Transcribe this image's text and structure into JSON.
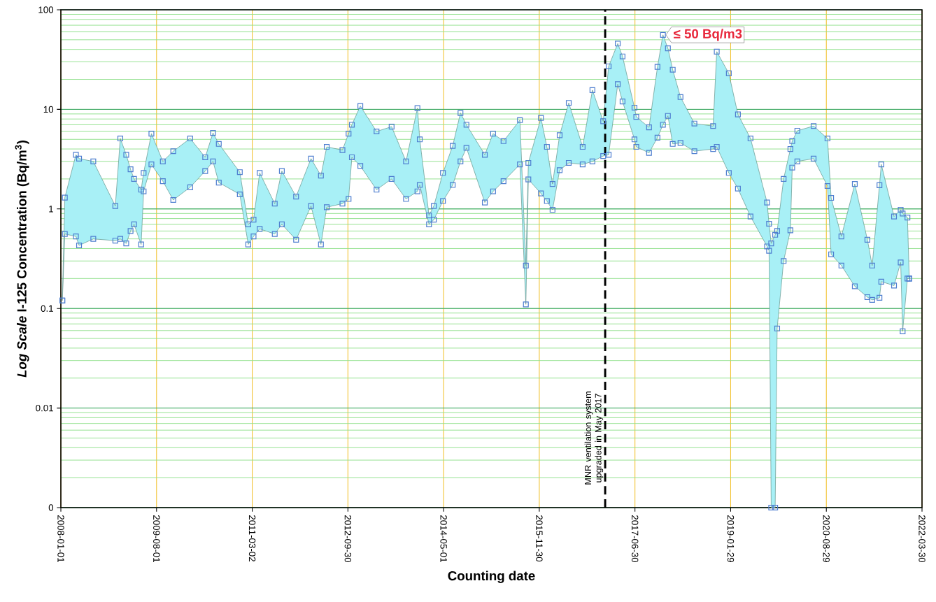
{
  "chart_data": {
    "type": "scatter",
    "xlabel": "Counting date",
    "ylabel": "*Log Scale* I-125 Concentration (Bq/m$^{3}$)",
    "x": [
      "2008-01-10",
      "2008-01-25",
      "2008-04-01",
      "2008-04-20",
      "2008-07-15",
      "2008-11-25",
      "2008-12-25",
      "2009-01-30",
      "2009-02-25",
      "2009-03-18",
      "2009-04-30",
      "2009-05-15",
      "2009-07-01",
      "2009-09-08",
      "2009-11-10",
      "2010-02-20",
      "2010-05-22",
      "2010-07-08",
      "2010-08-12",
      "2010-12-17",
      "2011-02-06",
      "2011-03-10",
      "2011-04-16",
      "2011-07-16",
      "2011-08-28",
      "2011-11-22",
      "2012-02-20",
      "2012-04-20",
      "2012-05-25",
      "2012-08-28",
      "2012-10-04",
      "2012-10-24",
      "2012-12-14",
      "2013-03-22",
      "2013-06-21",
      "2013-09-16",
      "2013-11-24",
      "2013-12-08",
      "2014-02-02",
      "2014-03-03",
      "2014-04-27",
      "2014-06-25",
      "2014-08-11",
      "2014-09-16",
      "2015-01-05",
      "2015-02-24",
      "2015-04-28",
      "2015-08-05",
      "2015-09-10",
      "2015-09-25",
      "2015-12-10",
      "2016-01-15",
      "2016-02-18",
      "2016-04-01",
      "2016-05-26",
      "2016-08-18",
      "2016-10-16",
      "2016-12-20",
      "2017-01-22",
      "2017-03-18",
      "2017-04-16",
      "2017-06-27",
      "2017-07-08",
      "2017-09-23",
      "2017-11-13",
      "2017-12-16",
      "2018-01-15",
      "2018-02-13",
      "2018-04-01",
      "2018-06-24",
      "2018-10-15",
      "2018-11-06",
      "2019-01-18",
      "2019-03-14",
      "2019-05-29",
      "2019-09-06",
      "2019-09-18",
      "2019-10-01",
      "2019-10-25",
      "2019-11-06",
      "2019-12-15",
      "2020-01-25",
      "2020-02-05",
      "2020-03-07",
      "2020-06-13",
      "2020-09-05",
      "2020-09-27",
      "2020-11-28",
      "2021-02-17",
      "2021-05-04",
      "2021-06-02",
      "2021-07-16",
      "2021-07-27",
      "2021-10-12",
      "2021-11-21",
      "2021-12-03",
      "2022-01-01",
      "2022-01-12"
    ],
    "series": [
      {
        "color": "#4f7fd0",
        "values": [
          0.12,
          1.3,
          3.5,
          3.2,
          3.0,
          1.07,
          5.1,
          3.5,
          2.5,
          2.0,
          1.56,
          2.3,
          5.7,
          3.0,
          3.8,
          5.1,
          3.3,
          5.8,
          4.5,
          2.34,
          0.7,
          0.78,
          2.3,
          1.13,
          2.4,
          1.33,
          3.2,
          2.16,
          4.2,
          3.9,
          5.7,
          7.0,
          10.8,
          6.0,
          6.7,
          3.0,
          10.3,
          5.0,
          0.86,
          1.07,
          2.3,
          4.3,
          9.2,
          7.0,
          3.5,
          5.7,
          4.8,
          7.8,
          0.27,
          2.9,
          8.2,
          4.2,
          1.78,
          5.5,
          11.6,
          4.2,
          15.6,
          7.6,
          27,
          45.8,
          34,
          10.4,
          8.4,
          6.6,
          26.7,
          56,
          41,
          25,
          13.3,
          7.2,
          6.8,
          38,
          23,
          8.9,
          5.1,
          1.16,
          0.71,
          0.45,
          0.55,
          0.6,
          2.0,
          4.0,
          4.8,
          6.1,
          6.8,
          5.1,
          1.29,
          0.53,
          1.78,
          0.49,
          0.27,
          1.73,
          2.8,
          0.84,
          0.98,
          0.9,
          0.82,
          0.2
        ],
        "upper": [
          0.12,
          1.3,
          3.5,
          3.2,
          3.0,
          1.07,
          5.1,
          3.5,
          2.5,
          2.0,
          1.56,
          2.3,
          5.7,
          3.0,
          3.8,
          5.1,
          3.3,
          5.8,
          4.5,
          2.34,
          0.7,
          0.78,
          2.3,
          1.13,
          2.4,
          1.33,
          3.2,
          2.16,
          4.2,
          3.9,
          5.7,
          7.0,
          10.8,
          6.0,
          6.7,
          3.0,
          10.3,
          5.0,
          0.86,
          1.07,
          2.3,
          4.3,
          9.2,
          7.0,
          3.5,
          5.7,
          4.8,
          7.8,
          0.27,
          2.9,
          8.2,
          4.2,
          1.78,
          5.5,
          11.6,
          4.2,
          15.6,
          7.6,
          27,
          45.8,
          34,
          10.4,
          8.4,
          6.6,
          26.7,
          56,
          41,
          25,
          13.3,
          7.2,
          6.8,
          38,
          23,
          8.9,
          5.1,
          1.16,
          0.71,
          0.45,
          0.55,
          0.6,
          2.0,
          4.0,
          4.8,
          6.1,
          6.8,
          5.1,
          1.29,
          0.53,
          1.78,
          0.49,
          0.27,
          1.73,
          2.8,
          0.84,
          0.98,
          0.9,
          0.82,
          0.2
        ],
        "lower": [
          0.12,
          0.56,
          0.53,
          0.43,
          0.5,
          0.48,
          0.5,
          0.45,
          0.6,
          0.7,
          0.44,
          1.5,
          2.8,
          1.9,
          1.23,
          1.65,
          2.4,
          3.0,
          1.84,
          1.4,
          0.44,
          0.53,
          0.63,
          0.56,
          0.7,
          0.49,
          1.07,
          0.44,
          1.04,
          1.13,
          1.26,
          3.3,
          2.7,
          1.56,
          2.0,
          1.26,
          1.5,
          1.74,
          0.7,
          0.78,
          1.2,
          1.74,
          3.0,
          4.1,
          1.16,
          1.5,
          1.9,
          2.8,
          0.11,
          1.98,
          1.43,
          1.2,
          0.98,
          2.45,
          2.9,
          2.8,
          3.0,
          3.4,
          3.5,
          17.9,
          12,
          5.0,
          4.2,
          3.66,
          5.2,
          7.0,
          8.6,
          4.5,
          4.6,
          3.8,
          4.0,
          4.2,
          2.3,
          1.6,
          0.84,
          0.42,
          0.38,
          0.001,
          0.001,
          0.063,
          0.3,
          0.61,
          2.6,
          3.0,
          3.2,
          1.7,
          0.35,
          0.27,
          0.167,
          0.13,
          0.122,
          0.128,
          0.186,
          0.17,
          0.29,
          0.059,
          0.2,
          0.2
        ]
      },
      {
        "color": "#4f7fd0",
        "values": [
          0.12,
          0.56,
          0.53,
          0.43,
          0.5,
          0.48,
          0.5,
          0.45,
          0.6,
          0.7,
          0.44,
          1.5,
          2.8,
          1.9,
          1.23,
          1.65,
          2.4,
          3.0,
          1.84,
          1.4,
          0.44,
          0.53,
          0.63,
          0.56,
          0.7,
          0.49,
          1.07,
          0.44,
          1.04,
          1.13,
          1.26,
          3.3,
          2.7,
          1.56,
          2.0,
          1.26,
          1.5,
          1.74,
          0.7,
          0.78,
          1.2,
          1.74,
          3.0,
          4.1,
          1.16,
          1.5,
          1.9,
          2.8,
          0.11,
          1.98,
          1.43,
          1.2,
          0.98,
          2.45,
          2.9,
          2.8,
          3.0,
          3.4,
          3.5,
          17.9,
          12,
          5.0,
          4.2,
          3.66,
          5.2,
          7.0,
          8.6,
          4.5,
          4.6,
          3.8,
          4.0,
          4.2,
          2.3,
          1.6,
          0.84,
          0.42,
          0.38,
          0.001,
          0.001,
          0.063,
          0.3,
          0.61,
          2.6,
          3.0,
          3.2,
          1.7,
          0.35,
          0.27,
          0.167,
          0.13,
          0.122,
          0.128,
          0.186,
          0.17,
          0.29,
          0.059,
          0.2,
          0.2
        ]
      }
    ],
    "marker": "square",
    "log": "y",
    "grid": true,
    "xlim": [
      "2008-01-01",
      "2022-03-30"
    ],
    "xticks": [
      "2008-01-01",
      "2009-08-01",
      "2011-03-02",
      "2012-09-30",
      "2014-05-01",
      "2015-11-30",
      "2017-06-30",
      "2019-01-29",
      "2020-08-29",
      "2022-03-30"
    ],
    "ylim": [
      0.001,
      100
    ],
    "yticks": [
      {
        "value": 0.001,
        "label": "0"
      },
      0.01,
      0.1,
      1,
      10,
      100
    ],
    "ref_lines": [
      {
        "axis": "x",
        "value": "2017-01-01",
        "label": "MNR ventilation system upgraded in May 2017",
        "line_style": "dashed",
        "color": "#000000"
      }
    ],
    "annotations": [
      {
        "text": "≤ 50 Bq/m3",
        "x": "2017-12-16",
        "y": 56
      }
    ]
  }
}
